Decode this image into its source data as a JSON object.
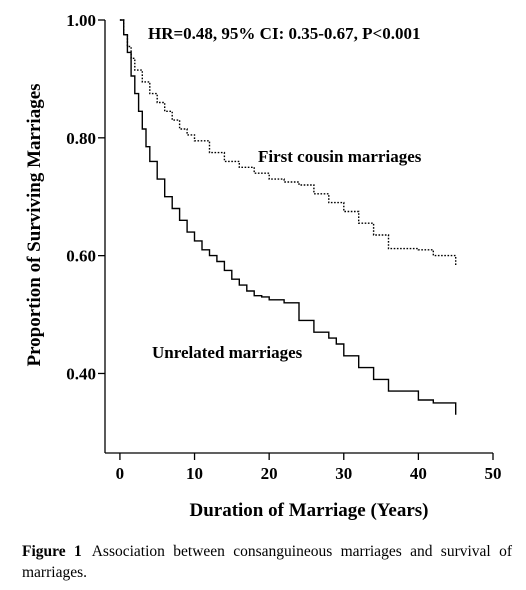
{
  "chart_data": {
    "type": "line",
    "annotation_hr": "HR=0.48, 95% CI: 0.35-0.67, P<0.001",
    "xlabel": "Duration of Marriage (Years)",
    "ylabel": "Proportion of Surviving Marriages",
    "xlim": [
      -2,
      50
    ],
    "ylim": [
      0.265,
      1.0
    ],
    "x_ticks": [
      0,
      10,
      20,
      30,
      40,
      50
    ],
    "x_tick_labels": [
      "0",
      "10",
      "20",
      "30",
      "40",
      "50"
    ],
    "y_ticks": [
      0.4,
      0.6,
      0.8,
      1.0
    ],
    "y_tick_labels": [
      "0.40",
      "0.60",
      "0.80",
      "1.00"
    ],
    "series": [
      {
        "name": "First cousin marriages",
        "style": "dotted",
        "color": "#000000",
        "x": [
          0,
          0.5,
          1,
          1.5,
          2,
          3,
          4,
          5,
          6,
          7,
          8,
          9,
          10,
          12,
          14,
          16,
          18,
          20,
          22,
          24,
          26,
          28,
          30,
          32,
          34,
          36,
          38,
          40,
          42,
          45,
          45
        ],
        "y": [
          1.0,
          0.975,
          0.955,
          0.935,
          0.915,
          0.895,
          0.875,
          0.86,
          0.845,
          0.83,
          0.815,
          0.805,
          0.795,
          0.775,
          0.76,
          0.75,
          0.74,
          0.73,
          0.725,
          0.72,
          0.705,
          0.69,
          0.675,
          0.655,
          0.635,
          0.612,
          0.612,
          0.61,
          0.6,
          0.598,
          0.583
        ]
      },
      {
        "name": "Unrelated marriages",
        "style": "solid",
        "color": "#000000",
        "x": [
          0,
          0.5,
          1,
          1.5,
          2,
          2.5,
          3,
          3.5,
          4,
          5,
          6,
          7,
          8,
          9,
          10,
          11,
          12,
          13,
          14,
          15,
          16,
          17,
          18,
          19,
          20,
          22,
          24,
          26,
          28,
          29,
          30,
          32,
          34,
          36,
          40,
          42,
          45,
          45
        ],
        "y": [
          1.0,
          0.975,
          0.945,
          0.905,
          0.875,
          0.845,
          0.815,
          0.785,
          0.76,
          0.73,
          0.7,
          0.68,
          0.66,
          0.64,
          0.625,
          0.61,
          0.6,
          0.59,
          0.575,
          0.56,
          0.55,
          0.54,
          0.532,
          0.53,
          0.525,
          0.52,
          0.49,
          0.47,
          0.46,
          0.45,
          0.43,
          0.41,
          0.39,
          0.37,
          0.355,
          0.35,
          0.345,
          0.33
        ]
      }
    ],
    "series_labels": [
      {
        "series": "First cousin marriages",
        "text": "First cousin marriages"
      },
      {
        "series": "Unrelated marriages",
        "text": "Unrelated marriages"
      }
    ]
  },
  "caption": {
    "label": "Figure 1",
    "text": "Association between consanguineous marriages and survival of marriages."
  }
}
